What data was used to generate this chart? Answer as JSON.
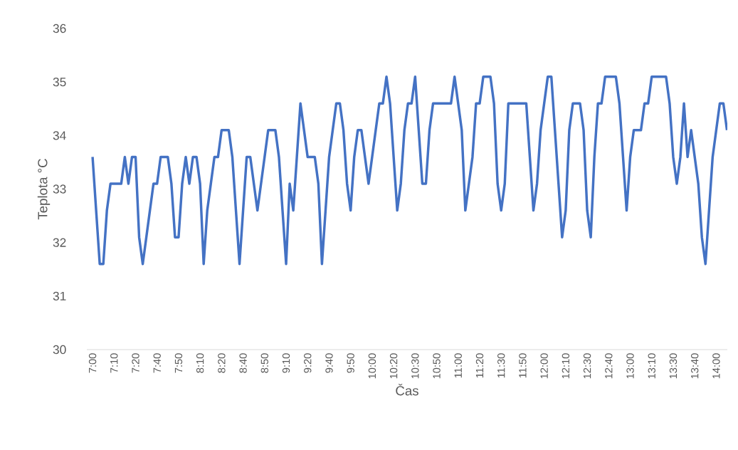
{
  "chart_data": {
    "type": "line",
    "xlabel": "Čas",
    "ylabel": "Teplota °C",
    "categories": [
      "7:00",
      null,
      null,
      null,
      null,
      null,
      "7:10",
      null,
      null,
      null,
      null,
      null,
      "7:20",
      null,
      null,
      null,
      null,
      null,
      "7:40",
      null,
      null,
      null,
      null,
      null,
      "7:50",
      null,
      null,
      null,
      null,
      null,
      "8:10",
      null,
      null,
      null,
      null,
      null,
      "8:20",
      null,
      null,
      null,
      null,
      null,
      "8:40",
      null,
      null,
      null,
      null,
      null,
      "8:50",
      null,
      null,
      null,
      null,
      null,
      "9:10",
      null,
      null,
      null,
      null,
      null,
      "9:20",
      null,
      null,
      null,
      null,
      null,
      "9:40",
      null,
      null,
      null,
      null,
      null,
      "9:50",
      null,
      null,
      null,
      null,
      null,
      "10:00",
      null,
      null,
      null,
      null,
      null,
      "10:20",
      null,
      null,
      null,
      null,
      null,
      "10:30",
      null,
      null,
      null,
      null,
      null,
      "10:50",
      null,
      null,
      null,
      null,
      null,
      "11:00",
      null,
      null,
      null,
      null,
      null,
      "11:20",
      null,
      null,
      null,
      null,
      null,
      "11:30",
      null,
      null,
      null,
      null,
      null,
      "11:50",
      null,
      null,
      null,
      null,
      null,
      "12:00",
      null,
      null,
      null,
      null,
      null,
      "12:10",
      null,
      null,
      null,
      null,
      null,
      "12:30",
      null,
      null,
      null,
      null,
      null,
      "12:40",
      null,
      null,
      null,
      null,
      null,
      "13:00",
      null,
      null,
      null,
      null,
      null,
      "13:10",
      null,
      null,
      null,
      null,
      null,
      "13:30",
      null,
      null,
      null,
      null,
      null,
      "13:40",
      null,
      null,
      null,
      null,
      null,
      "14:00",
      null,
      null,
      null
    ],
    "series": [
      {
        "color": "#4472c4",
        "values": [
          33.6,
          32.6,
          31.6,
          31.6,
          32.6,
          33.1,
          33.1,
          33.1,
          33.1,
          33.6,
          33.1,
          33.6,
          33.6,
          32.1,
          31.6,
          32.1,
          32.6,
          33.1,
          33.1,
          33.6,
          33.6,
          33.6,
          33.1,
          32.1,
          32.1,
          33.1,
          33.6,
          33.1,
          33.6,
          33.6,
          33.1,
          31.6,
          32.6,
          33.1,
          33.6,
          33.6,
          34.1,
          34.1,
          34.1,
          33.6,
          32.6,
          31.6,
          32.6,
          33.6,
          33.6,
          33.1,
          32.6,
          33.1,
          33.6,
          34.1,
          34.1,
          34.1,
          33.6,
          32.6,
          31.6,
          33.1,
          32.6,
          33.6,
          34.6,
          34.1,
          33.6,
          33.6,
          33.6,
          33.1,
          31.6,
          32.6,
          33.6,
          34.1,
          34.6,
          34.6,
          34.1,
          33.1,
          32.6,
          33.6,
          34.1,
          34.1,
          33.6,
          33.1,
          33.6,
          34.1,
          34.6,
          34.6,
          35.1,
          34.6,
          33.6,
          32.6,
          33.1,
          34.1,
          34.6,
          34.6,
          35.1,
          34.1,
          33.1,
          33.1,
          34.1,
          34.6,
          34.6,
          34.6,
          34.6,
          34.6,
          34.6,
          35.1,
          34.6,
          34.1,
          32.6,
          33.1,
          33.6,
          34.6,
          34.6,
          35.1,
          35.1,
          35.1,
          34.6,
          33.1,
          32.6,
          33.1,
          34.6,
          34.6,
          34.6,
          34.6,
          34.6,
          34.6,
          33.6,
          32.6,
          33.1,
          34.1,
          34.6,
          35.1,
          35.1,
          34.1,
          33.1,
          32.1,
          32.6,
          34.1,
          34.6,
          34.6,
          34.6,
          34.1,
          32.6,
          32.1,
          33.6,
          34.6,
          34.6,
          35.1,
          35.1,
          35.1,
          35.1,
          34.6,
          33.6,
          32.6,
          33.6,
          34.1,
          34.1,
          34.1,
          34.6,
          34.6,
          35.1,
          35.1,
          35.1,
          35.1,
          35.1,
          34.6,
          33.6,
          33.1,
          33.6,
          34.6,
          33.6,
          34.1,
          33.6,
          33.1,
          32.1,
          31.6,
          32.6,
          33.6,
          34.1,
          34.6,
          34.6,
          34.1
        ]
      }
    ],
    "ylim": [
      30,
      36
    ],
    "yticks": [
      30,
      31,
      32,
      33,
      34,
      35,
      36
    ],
    "grid": false,
    "legend": false,
    "marker": "none",
    "line_style": "solid"
  }
}
